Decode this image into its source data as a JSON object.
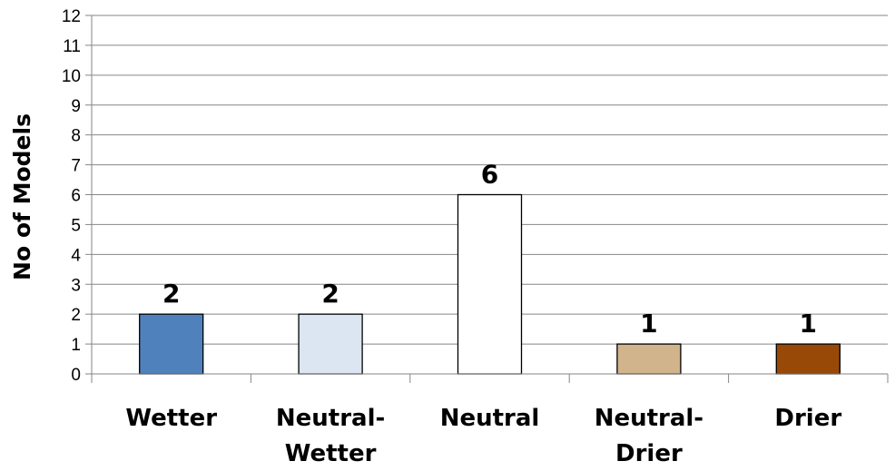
{
  "chart_data": {
    "type": "bar",
    "title": "",
    "xlabel": "",
    "ylabel": "No of Models",
    "categories": [
      "Wetter",
      "Neutral-Wetter",
      "Neutral",
      "Neutral-Drier",
      "Drier"
    ],
    "category_lines": [
      [
        "Wetter"
      ],
      [
        "Neutral-",
        "Wetter"
      ],
      [
        "Neutral"
      ],
      [
        "Neutral-",
        "Drier"
      ],
      [
        "Drier"
      ]
    ],
    "values": [
      2,
      2,
      6,
      1,
      1
    ],
    "bar_colors": [
      "#4f81bd",
      "#dce6f2",
      "#ffffff",
      "#d1b48c",
      "#984807"
    ],
    "ylim": [
      0,
      12
    ],
    "yticks": [
      0,
      1,
      2,
      3,
      4,
      5,
      6,
      7,
      8,
      9,
      10,
      11,
      12
    ],
    "grid": true,
    "data_labels": true
  }
}
